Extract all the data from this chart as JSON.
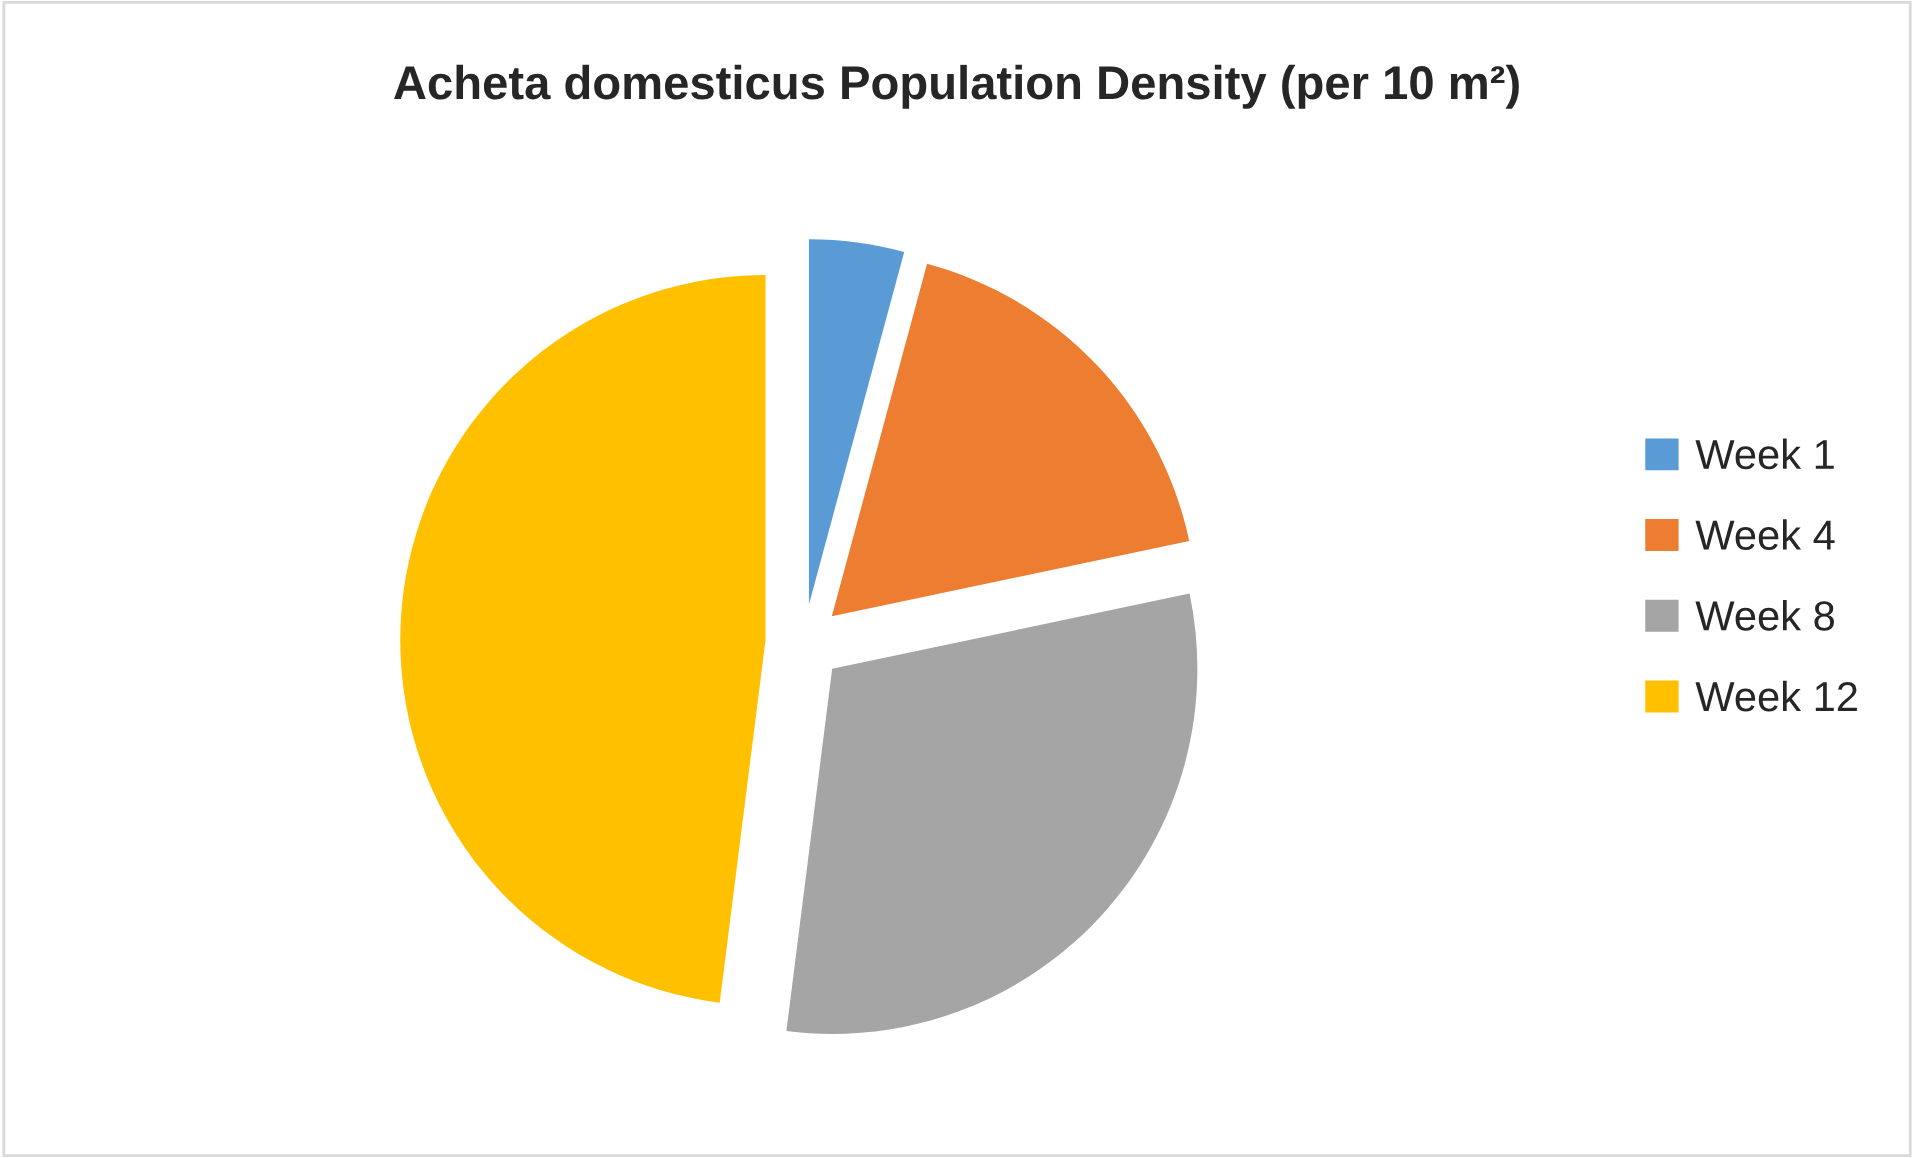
{
  "chart_data": {
    "type": "pie",
    "title": "Acheta domesticus Population Density (per 10 m²)",
    "categories": [
      "Week 1",
      "Week 4",
      "Week 8",
      "Week 12"
    ],
    "values": [
      4.2,
      17.5,
      30.3,
      48.0
    ],
    "colors": [
      "#5b9bd5",
      "#ed7d31",
      "#a5a5a5",
      "#ffc000"
    ],
    "legend": "right"
  }
}
